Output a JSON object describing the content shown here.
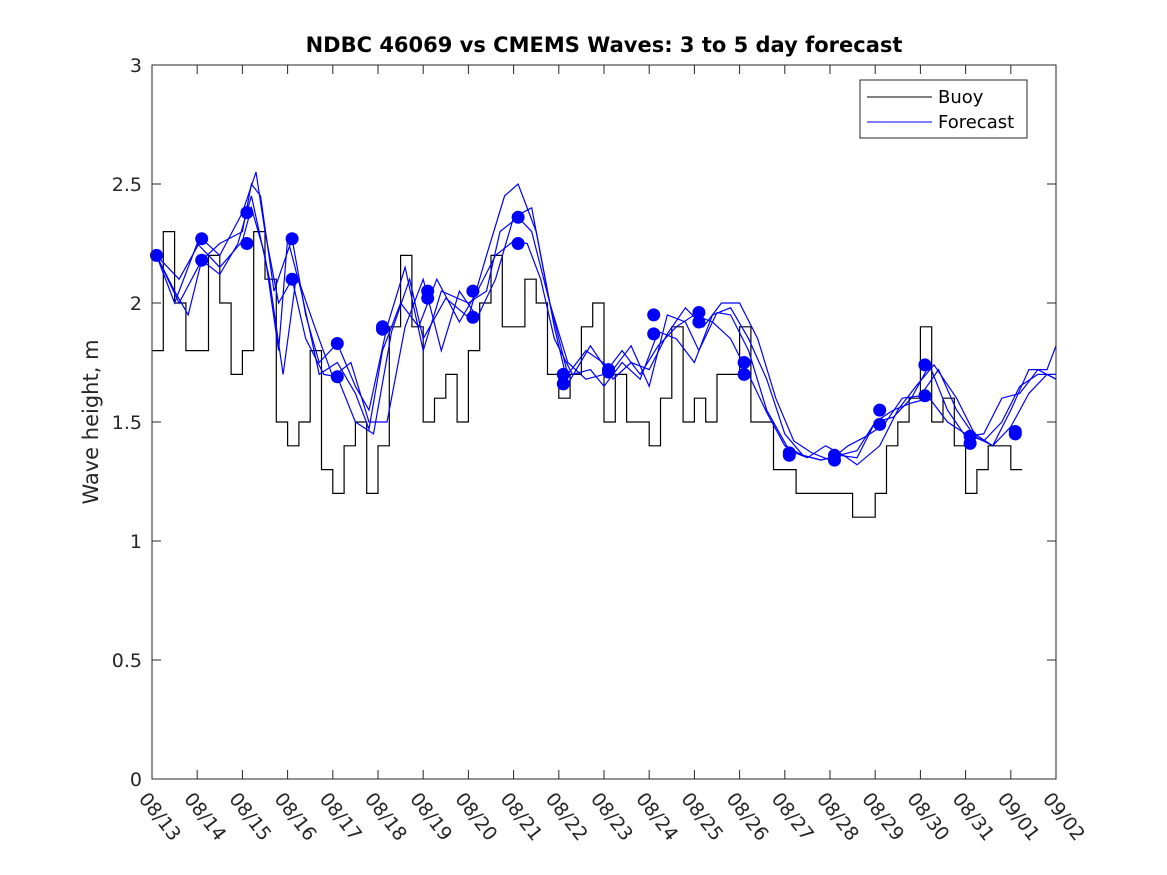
{
  "chart_data": {
    "type": "line",
    "title": "NDBC 46069 vs CMEMS Waves: 3 to 5 day forecast",
    "xlabel": "",
    "ylabel": "Wave height, m",
    "ylim": [
      0,
      3
    ],
    "yticks": [
      0,
      0.5,
      1,
      1.5,
      2,
      2.5,
      3
    ],
    "ytick_labels": [
      "0",
      "0.5",
      "1",
      "1.5",
      "2",
      "2.5",
      "3"
    ],
    "xlim_days": [
      0,
      20
    ],
    "xtick_labels": [
      "08/13",
      "08/14",
      "08/15",
      "08/16",
      "08/17",
      "08/18",
      "08/19",
      "08/20",
      "08/21",
      "08/22",
      "08/23",
      "08/24",
      "08/25",
      "08/26",
      "08/27",
      "08/28",
      "08/29",
      "08/30",
      "08/31",
      "09/01",
      "09/02"
    ],
    "legend": {
      "position": "top-right",
      "entries": [
        {
          "name": "Buoy",
          "color": "#000000"
        },
        {
          "name": "Forecast",
          "color": "#0000ff"
        }
      ]
    },
    "series": [
      {
        "name": "Buoy",
        "color": "#000000",
        "x": [
          0,
          0.25,
          0.5,
          0.75,
          1.0,
          1.25,
          1.5,
          1.75,
          2.0,
          2.25,
          2.5,
          2.75,
          3.0,
          3.25,
          3.5,
          3.75,
          4.0,
          4.25,
          4.5,
          4.75,
          5.0,
          5.25,
          5.5,
          5.75,
          6.0,
          6.25,
          6.5,
          6.75,
          7.0,
          7.25,
          7.5,
          7.75,
          8.0,
          8.25,
          8.5,
          8.75,
          9.0,
          9.25,
          9.5,
          9.75,
          10.0,
          10.25,
          10.5,
          10.75,
          11.0,
          11.25,
          11.5,
          11.75,
          12.0,
          12.25,
          12.5,
          12.75,
          13.0,
          13.25,
          13.5,
          13.75,
          14.0,
          14.25,
          14.5,
          14.75,
          15.0,
          15.25,
          15.5,
          15.75,
          16.0,
          16.25,
          16.5,
          16.75,
          17.0,
          17.25,
          17.5,
          17.75,
          18.0,
          18.25,
          18.5,
          18.75,
          19.0,
          19.25
        ],
        "values": [
          1.8,
          2.3,
          2.0,
          1.8,
          1.8,
          2.2,
          2.0,
          1.7,
          1.8,
          2.3,
          2.1,
          1.5,
          1.4,
          1.5,
          1.8,
          1.3,
          1.2,
          1.4,
          1.5,
          1.2,
          1.4,
          1.9,
          2.2,
          1.9,
          1.5,
          1.6,
          1.7,
          1.5,
          1.8,
          2.0,
          2.2,
          1.9,
          1.9,
          2.1,
          2.0,
          1.7,
          1.6,
          1.7,
          1.9,
          2.0,
          1.5,
          1.7,
          1.5,
          1.5,
          1.4,
          1.6,
          1.9,
          1.5,
          1.6,
          1.5,
          1.7,
          1.7,
          1.9,
          1.5,
          1.5,
          1.3,
          1.3,
          1.2,
          1.2,
          1.2,
          1.2,
          1.2,
          1.1,
          1.1,
          1.2,
          1.4,
          1.5,
          1.6,
          1.9,
          1.5,
          1.6,
          1.4,
          1.2,
          1.3,
          1.4,
          1.4,
          1.3,
          1.3
        ]
      },
      {
        "name": "Forecast 1",
        "color": "#0000ff",
        "x": [
          0.1,
          0.5,
          0.8,
          1.1,
          1.5,
          2.0,
          2.2,
          2.4,
          2.7,
          3.1,
          3.4,
          3.7,
          4.1,
          4.5,
          4.8,
          5.2,
          5.6,
          6.0,
          6.4,
          7.0,
          7.4,
          7.7,
          8.1,
          8.4,
          8.8,
          9.2,
          9.6,
          10.2,
          10.6,
          11.0,
          11.4,
          11.8,
          12.1,
          12.5,
          12.8,
          13.2,
          13.6,
          14.1,
          14.5,
          14.9,
          15.3,
          15.6,
          16.1,
          16.5,
          16.9,
          17.3,
          17.8,
          18.2,
          18.6,
          19.0,
          19.4,
          19.8,
          20.0
        ],
        "values": [
          2.2,
          2.05,
          1.95,
          2.18,
          2.25,
          2.3,
          2.5,
          2.45,
          2.05,
          2.27,
          1.95,
          1.75,
          1.83,
          1.65,
          1.55,
          1.9,
          2.15,
          1.8,
          2.05,
          2.0,
          2.05,
          2.3,
          2.36,
          2.3,
          2.0,
          1.7,
          1.8,
          1.72,
          1.82,
          1.65,
          1.95,
          1.92,
          1.8,
          1.96,
          1.95,
          1.8,
          1.55,
          1.38,
          1.35,
          1.4,
          1.36,
          1.32,
          1.4,
          1.55,
          1.65,
          1.74,
          1.6,
          1.45,
          1.4,
          1.48,
          1.62,
          1.7,
          1.68
        ]
      },
      {
        "name": "Forecast 2",
        "color": "#0000ff",
        "x": [
          0.1,
          0.6,
          1.1,
          1.5,
          2.0,
          2.3,
          2.5,
          2.8,
          3.1,
          3.4,
          3.8,
          4.1,
          4.5,
          4.9,
          5.3,
          5.7,
          6.0,
          6.5,
          7.0,
          7.4,
          7.8,
          8.1,
          8.5,
          8.9,
          9.2,
          9.7,
          10.2,
          10.6,
          11.0,
          11.4,
          11.8,
          12.2,
          12.6,
          13.0,
          13.4,
          13.8,
          14.2,
          14.6,
          15.0,
          15.4,
          15.8,
          16.2,
          16.6,
          17.0,
          17.4,
          17.8,
          18.2,
          18.6,
          19.0,
          19.4,
          19.8,
          20.0
        ],
        "values": [
          2.2,
          2.1,
          2.27,
          2.2,
          2.38,
          2.55,
          2.3,
          2.0,
          2.1,
          1.85,
          1.7,
          1.69,
          1.5,
          1.45,
          1.88,
          2.1,
          1.85,
          2.02,
          1.94,
          2.2,
          2.45,
          2.5,
          2.3,
          1.9,
          1.66,
          1.82,
          1.68,
          1.75,
          1.72,
          1.87,
          1.98,
          1.9,
          2.0,
          2.0,
          1.85,
          1.6,
          1.42,
          1.37,
          1.34,
          1.4,
          1.44,
          1.49,
          1.6,
          1.61,
          1.72,
          1.55,
          1.44,
          1.4,
          1.55,
          1.72,
          1.72,
          1.82
        ]
      },
      {
        "name": "Forecast 3",
        "color": "#0000ff",
        "x": [
          0.1,
          0.5,
          1.0,
          1.5,
          2.0,
          2.2,
          2.5,
          2.8,
          3.0,
          3.3,
          3.7,
          4.1,
          4.5,
          4.8,
          5.1,
          5.5,
          5.9,
          6.3,
          6.8,
          7.2,
          7.6,
          8.0,
          8.3,
          8.6,
          8.9,
          9.3,
          9.7,
          10.0,
          10.4,
          10.8,
          11.2,
          11.6,
          12.0,
          12.4,
          12.8,
          13.2,
          13.6,
          14.0,
          14.4,
          14.8,
          15.2,
          15.6,
          16.0,
          16.4,
          16.8,
          17.2,
          17.6,
          18.0,
          18.4,
          18.8,
          19.2,
          19.6,
          20.0
        ],
        "values": [
          2.2,
          2.0,
          2.25,
          2.15,
          2.26,
          2.4,
          2.2,
          1.8,
          2.27,
          2.05,
          1.7,
          1.75,
          1.62,
          1.47,
          1.8,
          2.0,
          1.9,
          2.1,
          1.92,
          2.05,
          2.2,
          2.26,
          2.25,
          2.1,
          1.85,
          1.7,
          1.72,
          1.65,
          1.75,
          1.68,
          1.88,
          1.85,
          1.75,
          1.95,
          1.98,
          1.85,
          1.68,
          1.45,
          1.36,
          1.34,
          1.36,
          1.35,
          1.5,
          1.52,
          1.6,
          1.74,
          1.55,
          1.44,
          1.45,
          1.6,
          1.62,
          1.72,
          1.68
        ]
      },
      {
        "name": "Forecast 4",
        "color": "#0000ff",
        "x": [
          0.1,
          0.6,
          1.1,
          1.5,
          1.9,
          2.2,
          2.6,
          2.9,
          3.2,
          3.6,
          4.0,
          4.4,
          4.8,
          5.2,
          5.6,
          6.0,
          6.4,
          6.8,
          7.2,
          7.6,
          8.0,
          8.4,
          8.8,
          9.2,
          9.6,
          10.0,
          10.4,
          10.8,
          11.2,
          11.6,
          12.0,
          12.4,
          12.8,
          13.2,
          13.6,
          14.0,
          14.4,
          14.8,
          15.2,
          15.6,
          16.0,
          16.4,
          16.8,
          17.2,
          17.6,
          18.0,
          18.4,
          18.8,
          19.2,
          19.6,
          20.0
        ],
        "values": [
          2.2,
          2.0,
          2.18,
          2.12,
          2.25,
          2.45,
          2.1,
          1.7,
          2.12,
          1.9,
          1.69,
          1.75,
          1.5,
          1.5,
          1.9,
          2.1,
          1.8,
          2.05,
          1.94,
          2.1,
          2.36,
          2.4,
          2.0,
          1.75,
          1.68,
          1.7,
          1.8,
          1.7,
          1.82,
          1.9,
          1.95,
          1.92,
          1.85,
          1.7,
          1.54,
          1.4,
          1.36,
          1.34,
          1.36,
          1.38,
          1.5,
          1.55,
          1.58,
          1.6,
          1.5,
          1.45,
          1.42,
          1.5,
          1.65,
          1.7,
          1.7
        ]
      }
    ],
    "markers": {
      "color": "#0000ff",
      "x": [
        0.1,
        1.1,
        1.1,
        2.1,
        2.1,
        3.1,
        3.1,
        4.1,
        4.1,
        5.1,
        5.1,
        6.1,
        6.1,
        7.1,
        7.1,
        8.1,
        8.1,
        9.1,
        9.1,
        10.1,
        10.1,
        11.1,
        11.1,
        12.1,
        12.1,
        13.1,
        13.1,
        14.1,
        14.1,
        15.1,
        15.1,
        16.1,
        16.1,
        17.1,
        17.1,
        18.1,
        18.1,
        19.1,
        19.1
      ],
      "values": [
        2.2,
        2.27,
        2.18,
        2.38,
        2.25,
        2.27,
        2.1,
        1.83,
        1.69,
        1.9,
        1.89,
        2.05,
        2.02,
        2.05,
        1.94,
        2.36,
        2.25,
        1.7,
        1.66,
        1.72,
        1.71,
        1.95,
        1.87,
        1.96,
        1.92,
        1.75,
        1.7,
        1.37,
        1.36,
        1.36,
        1.34,
        1.55,
        1.49,
        1.74,
        1.61,
        1.44,
        1.41,
        1.46,
        1.45
      ]
    }
  }
}
